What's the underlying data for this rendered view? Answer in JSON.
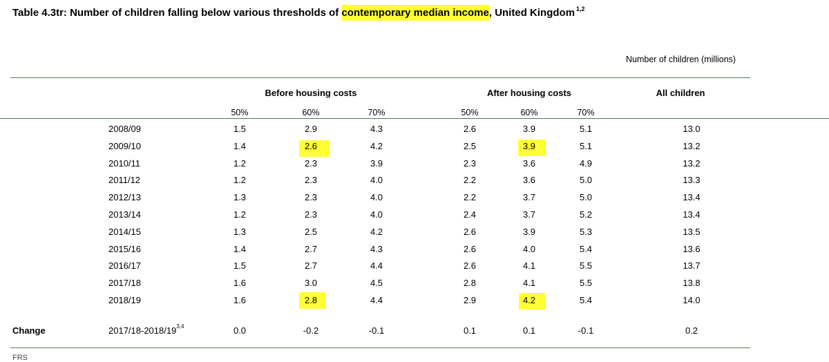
{
  "title": {
    "prefix": "Table 4.3tr: Number of children falling below various thresholds of ",
    "highlight": "contemporary median income",
    "suffix": ", United Kingdom",
    "footnote_refs": "1,2"
  },
  "units_note": "Number of children (millions)",
  "groups": {
    "bhc": "Before housing costs",
    "ahc": "After housing costs",
    "all": "All children"
  },
  "threshold_headers": [
    "50%",
    "60%",
    "70%",
    "50%",
    "60%",
    "70%"
  ],
  "rows": [
    {
      "year": "2008/09",
      "values": [
        "1.5",
        "2.9",
        "4.3",
        "2.6",
        "3.9",
        "5.1",
        "13.0"
      ]
    },
    {
      "year": "2009/10",
      "values": [
        "1.4",
        "2.6",
        "4.2",
        "2.5",
        "3.9",
        "5.1",
        "13.2"
      ]
    },
    {
      "year": "2010/11",
      "values": [
        "1.2",
        "2.3",
        "3.9",
        "2.3",
        "3.6",
        "4.9",
        "13.2"
      ]
    },
    {
      "year": "2011/12",
      "values": [
        "1.2",
        "2.3",
        "4.0",
        "2.2",
        "3.6",
        "5.0",
        "13.3"
      ]
    },
    {
      "year": "2012/13",
      "values": [
        "1.3",
        "2.3",
        "4.0",
        "2.2",
        "3.7",
        "5.0",
        "13.4"
      ]
    },
    {
      "year": "2013/14",
      "values": [
        "1.2",
        "2.3",
        "4.0",
        "2.4",
        "3.7",
        "5.2",
        "13.4"
      ]
    },
    {
      "year": "2014/15",
      "values": [
        "1.3",
        "2.5",
        "4.2",
        "2.6",
        "3.9",
        "5.3",
        "13.5"
      ]
    },
    {
      "year": "2015/16",
      "values": [
        "1.4",
        "2.7",
        "4.3",
        "2.6",
        "4.0",
        "5.4",
        "13.6"
      ]
    },
    {
      "year": "2016/17",
      "values": [
        "1.5",
        "2.7",
        "4.4",
        "2.6",
        "4.1",
        "5.5",
        "13.7"
      ]
    },
    {
      "year": "2017/18",
      "values": [
        "1.6",
        "3.0",
        "4.5",
        "2.8",
        "4.1",
        "5.5",
        "13.8"
      ]
    },
    {
      "year": "2018/19",
      "values": [
        "1.6",
        "2.8",
        "4.4",
        "2.9",
        "4.2",
        "5.4",
        "14.0"
      ]
    }
  ],
  "change": {
    "label": "Change",
    "period": "2017/18-2018/19",
    "footnote_refs": "3,4",
    "values": [
      "0.0",
      "-0.2",
      "-0.1",
      "0.1",
      "0.1",
      "-0.1",
      "0.2"
    ]
  },
  "highlighted_cells": [
    {
      "year": "2009/10",
      "column": "Before housing costs 60%"
    },
    {
      "year": "2009/10",
      "column": "After housing costs 60%"
    },
    {
      "year": "2018/19",
      "column": "Before housing costs 60%"
    },
    {
      "year": "2018/19",
      "column": "After housing costs 60%"
    }
  ],
  "footer_text": "FRS",
  "colors": {
    "highlight": "#ffff33",
    "rule": "#4a7a55",
    "text": "#000000"
  }
}
